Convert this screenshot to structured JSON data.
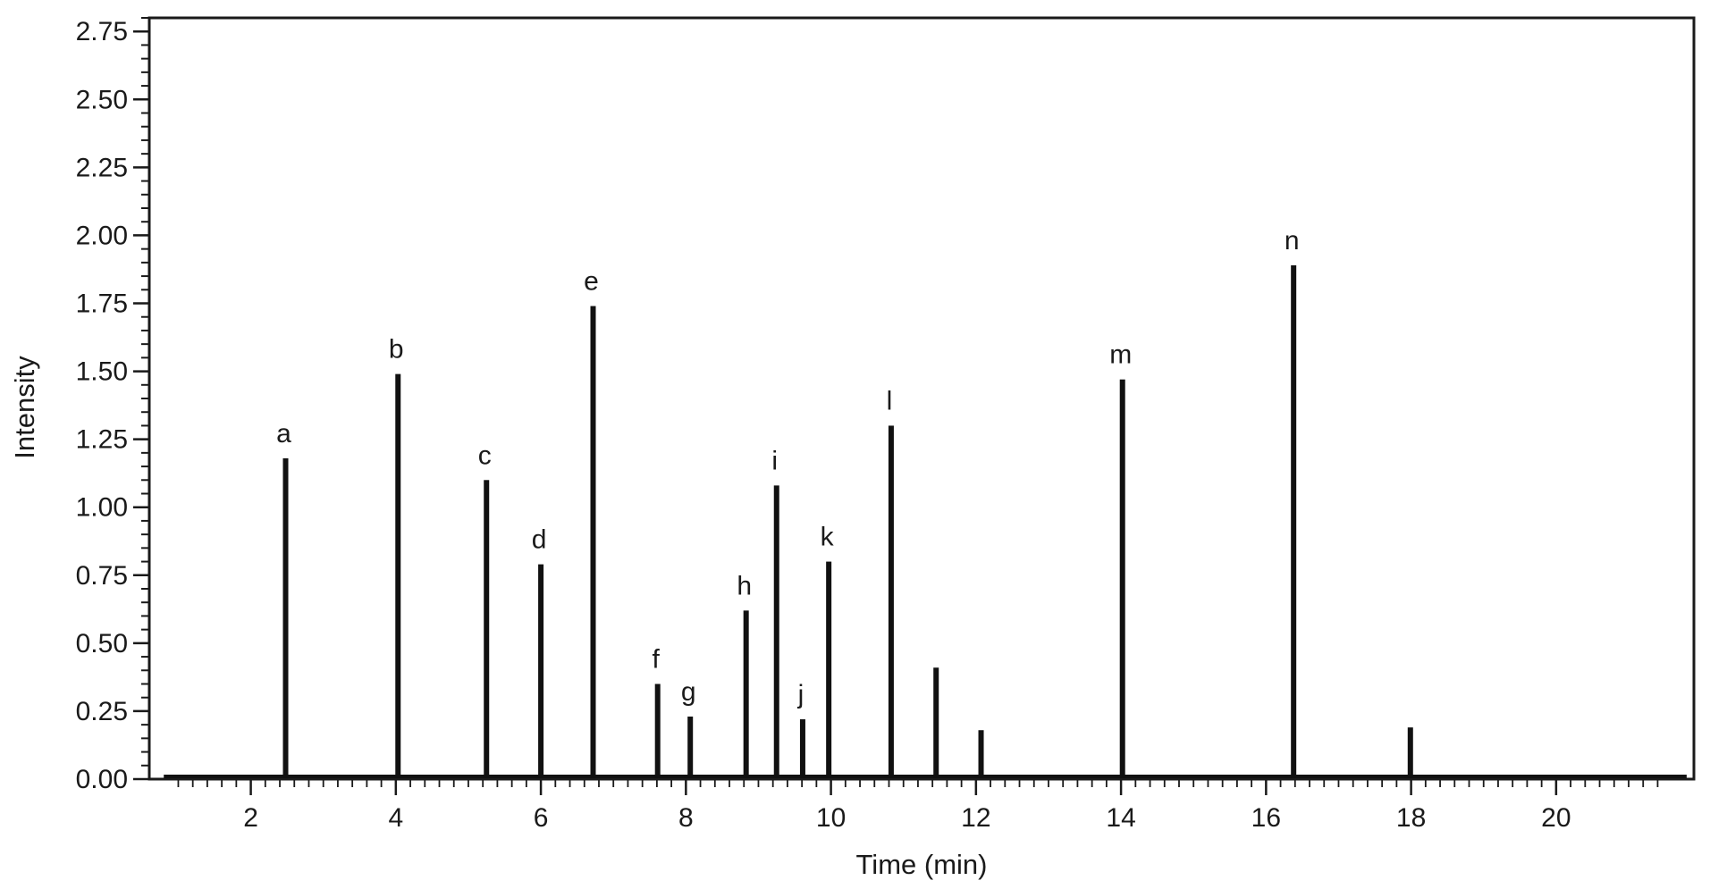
{
  "chart_data": {
    "type": "line",
    "xlabel": "Time (min)",
    "ylabel": "Intensity",
    "xlim": [
      0.6,
      21.9
    ],
    "ylim": [
      0,
      2.8
    ],
    "xticks": [
      2,
      4,
      6,
      8,
      10,
      12,
      14,
      16,
      18,
      20
    ],
    "yticks": [
      0.0,
      0.25,
      0.5,
      0.75,
      1.0,
      1.25,
      1.5,
      1.75,
      2.0,
      2.25,
      2.5,
      2.75
    ],
    "ytick_labels": [
      "0.00",
      "0.25",
      "0.50",
      "0.75",
      "1.00",
      "1.25",
      "1.50",
      "1.75",
      "2.00",
      "2.25",
      "2.50",
      "2.75"
    ],
    "baseline": 0.01,
    "grid": false,
    "line_color": "#111111",
    "peaks": [
      {
        "label": "a",
        "x": 2.48,
        "y": 1.18
      },
      {
        "label": "b",
        "x": 4.03,
        "y": 1.49
      },
      {
        "label": "c",
        "x": 5.25,
        "y": 1.1
      },
      {
        "label": "d",
        "x": 6.0,
        "y": 0.79
      },
      {
        "label": "e",
        "x": 6.72,
        "y": 1.74
      },
      {
        "label": "f",
        "x": 7.61,
        "y": 0.35
      },
      {
        "label": "g",
        "x": 8.06,
        "y": 0.23
      },
      {
        "label": "h",
        "x": 8.83,
        "y": 0.62
      },
      {
        "label": "i",
        "x": 9.25,
        "y": 1.08
      },
      {
        "label": "j",
        "x": 9.61,
        "y": 0.22
      },
      {
        "label": "k",
        "x": 9.97,
        "y": 0.8
      },
      {
        "label": "l",
        "x": 10.83,
        "y": 1.3
      },
      {
        "label": "m",
        "x": 14.02,
        "y": 1.47
      },
      {
        "label": "n",
        "x": 16.38,
        "y": 1.89
      }
    ],
    "unlabeled_peaks": [
      {
        "x": 11.45,
        "y": 0.41
      },
      {
        "x": 12.07,
        "y": 0.18
      },
      {
        "x": 17.99,
        "y": 0.19
      }
    ]
  }
}
